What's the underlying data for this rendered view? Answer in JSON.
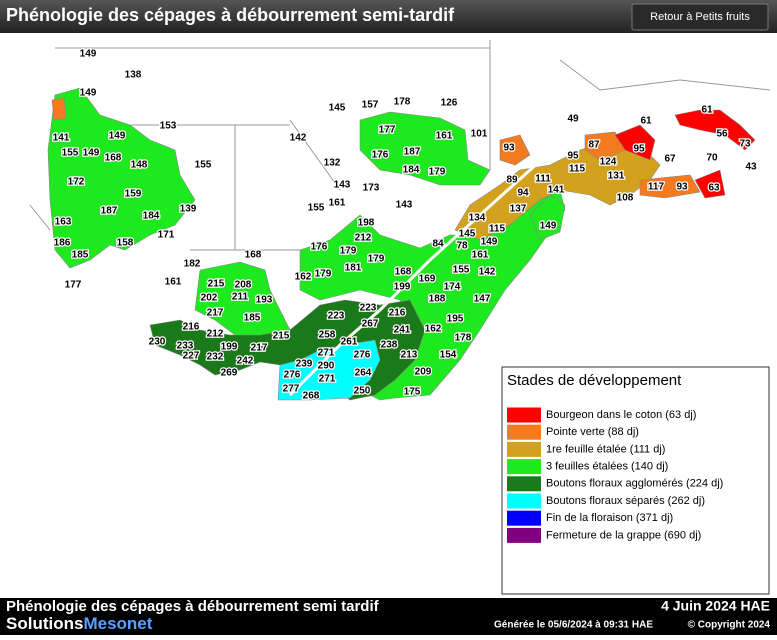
{
  "header": {
    "title": "Phénologie des cépages à débourrement semi-tardif",
    "button": "Retour à Petits fruits"
  },
  "map": {
    "labels": [
      149,
      138,
      149,
      153,
      141,
      149,
      155,
      149,
      168,
      148,
      155,
      172,
      159,
      187,
      184,
      139,
      163,
      158,
      171,
      186,
      185,
      182,
      161,
      177,
      145,
      157,
      178,
      126,
      177,
      142,
      161,
      101,
      49,
      61,
      61,
      93,
      56,
      73,
      95,
      87,
      95,
      176,
      187,
      132,
      124,
      67,
      70,
      43,
      184,
      179,
      115,
      131,
      143,
      173,
      89,
      111,
      94,
      141,
      117,
      93,
      63,
      108,
      143,
      161,
      155,
      137,
      134,
      198,
      115,
      145,
      149,
      212,
      84,
      78,
      149,
      176,
      179,
      161,
      168,
      181,
      179,
      155,
      142,
      162,
      179,
      168,
      169,
      215,
      208,
      199,
      174,
      202,
      211,
      193,
      188,
      147,
      217,
      185,
      223,
      216,
      223,
      267,
      195,
      216,
      212,
      258,
      241,
      162,
      230,
      233,
      215,
      261,
      238,
      178,
      199,
      217,
      227,
      232,
      242,
      271,
      276,
      213,
      154,
      239,
      290,
      269,
      276,
      271,
      264,
      209,
      277,
      268,
      250,
      175
    ]
  },
  "legend": {
    "title": "Stades de développement",
    "items": [
      {
        "label": "Bourgeon dans le coton (63 dj)",
        "color": "#ff0000"
      },
      {
        "label": "Pointe verte (88 dj)",
        "color": "#f47a20"
      },
      {
        "label": "1re feuille étalée (111 dj)",
        "color": "#d2a21e"
      },
      {
        "label": "3 feuilles étalées (140 dj)",
        "color": "#1ee81e"
      },
      {
        "label": "Boutons floraux agglomérés (224 dj)",
        "color": "#1a7a1a"
      },
      {
        "label": "Boutons floraux séparés (262 dj)",
        "color": "#00ffff"
      },
      {
        "label": "Fin de la floraison (371 dj)",
        "color": "#0000ff"
      },
      {
        "label": "Fermeture de la grappe (690 dj)",
        "color": "#800080"
      }
    ]
  },
  "footer": {
    "title": "Phénologie des cépages à débourrement semi tardif",
    "date": "4 Juin 2024 HAE",
    "brand": "Solutions",
    "brand_accent": "Mesonet",
    "generated": "Générée le 05/6/2024 à 09:31 HAE",
    "copyright": "© Copyright 2024"
  }
}
